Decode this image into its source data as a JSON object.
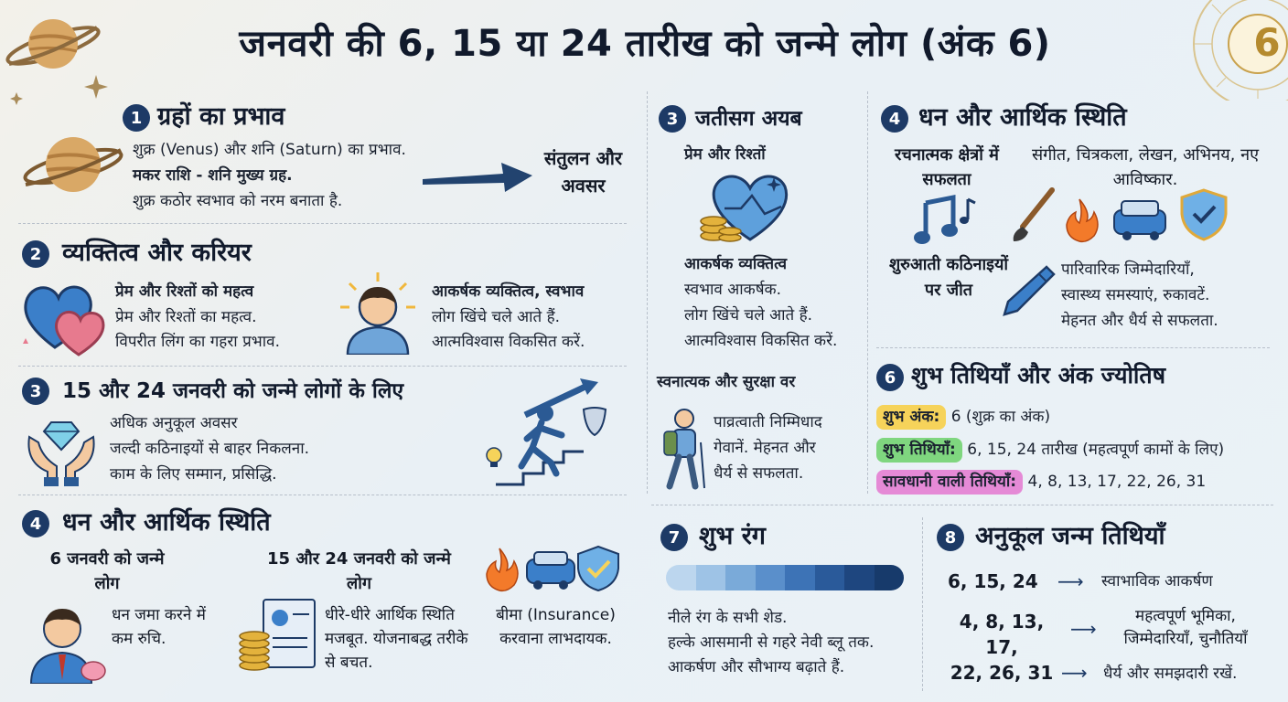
{
  "title": "जनवरी की 6, 15 या 24 तारीख को जन्मे लोग (अंक 6)",
  "badge_number": "6",
  "s1": {
    "num": "1",
    "heading": "ग्रहों का प्रभाव",
    "line1": "शुक्र (Venus) और शनि (Saturn) का प्रभाव.",
    "line2": "मकर राशि - शनि मुख्य ग्रह.",
    "line3": "शुक्र कठोर स्वभाव को नरम बनाता है.",
    "result": "संतुलन और अवसर"
  },
  "s2": {
    "num": "2",
    "heading": "व्यक्तित्व और करियर",
    "left_title": "प्रेम और रिश्तों को महत्व",
    "left_line1": "प्रेम और रिश्तों का महत्व.",
    "left_line2": "विपरीत लिंग का गहरा प्रभाव.",
    "right_title": "आकर्षक व्यक्तित्व, स्वभाव",
    "right_line1": "लोग खिंचे चले आते हैं.",
    "right_line2": "आत्मविश्वास विकसित करें."
  },
  "s3": {
    "num": "3",
    "heading": "15 और 24 जनवरी को जन्मे लोगों के लिए",
    "line1": "अधिक अनुकूल अवसर",
    "line2": "जल्दी कठिनाइयों से बाहर निकलना.",
    "line3": "काम के लिए सम्मान, प्रसिद्धि."
  },
  "s4": {
    "num": "4",
    "heading": "धन और आर्थिक स्थिति",
    "col1_title": "6 जनवरी को जन्मे लोग",
    "col1_text": "धन जमा करने में कम रुचि.",
    "col2_title": "15 और 24 जनवरी को जन्मे लोग",
    "col2_text": "धीरे-धीरे आर्थिक स्थिति मजबूत. योजनाबद्ध तरीके से बचत.",
    "col3_text": "बीमा (Insurance) करवाना लाभदायक."
  },
  "m3": {
    "num": "3",
    "heading": "जतीसग अयब",
    "sub": "प्रेम और रिश्तों",
    "title": "आकर्षक व्यक्तित्व",
    "line1": "स्वभाव आकर्षक.",
    "line2": "लोग खिंचे चले आते हैं.",
    "line3": "आत्मविश्वास विकसित करें.",
    "sub2": "स्वनात्यक और सुरक्षा वर",
    "line4": "पाव्रत्वाती निम्मिधाद",
    "line5": "गेवानें. मेहनत और",
    "line6": "धैर्य से सफलता."
  },
  "r4": {
    "num": "4",
    "heading": "धन और आर्थिक स्थिति",
    "left_title": "रचनात्मक क्षेत्रों में सफलता",
    "right_text": "संगीत, चित्रकला, लेखन, अभिनय, नए आविष्कार.",
    "left_title2": "शुरुआती कठिनाइयों पर जीत",
    "right_line1": "पारिवारिक जिम्मेदारियाँ,",
    "right_line2": "स्वास्थ्य समस्याएं, रुकावटें.",
    "right_line3": "मेहनत और धैर्य से सफलता."
  },
  "r6": {
    "num": "6",
    "heading": "शुभ तिथियाँ और अंक ज्योतिष",
    "row1_label": "शुभ अंक:",
    "row1_value": "6 (शुक्र का अंक)",
    "row2_label": "शुभ तिथियाँ:",
    "row2_value": "6, 15, 24 तारीख (महत्वपूर्ण कामों के लिए)",
    "row3_label": "सावधानी वाली तिथियाँ:",
    "row3_value": "4, 8, 13, 17, 22, 26, 31"
  },
  "r7": {
    "num": "7",
    "heading": "शुभ रंग",
    "line1": "नीले रंग के सभी शेड.",
    "line2": "हल्के आसमानी से गहरे नेवी ब्लू तक.",
    "line3": "आकर्षण और सौभाग्य बढ़ाते हैं.",
    "swatches": [
      "#bcd6ee",
      "#9ec3e6",
      "#7aaad9",
      "#5a8fcb",
      "#3d73b6",
      "#2a5a9a",
      "#1e467f",
      "#173a6b"
    ]
  },
  "r8": {
    "num": "8",
    "heading": "अनुकूल जन्म तिथियाँ",
    "row1_dates": "6, 15, 24",
    "row1_text": "स्वाभाविक आकर्षण",
    "row2_dates_a": "4, 8, 13, 17,",
    "row2_dates_b": "22, 26, 31",
    "row2_text_a": "महत्वपूर्ण भूमिका,",
    "row2_text_b": "जिम्मेदारियाँ, चुनौतियाँ",
    "row3_text": "धैर्य और समझदारी रखें."
  },
  "colors": {
    "navy": "#1d3a66",
    "yellow": "#f6d35a",
    "green": "#7fd67f",
    "pink": "#e58ad6"
  }
}
